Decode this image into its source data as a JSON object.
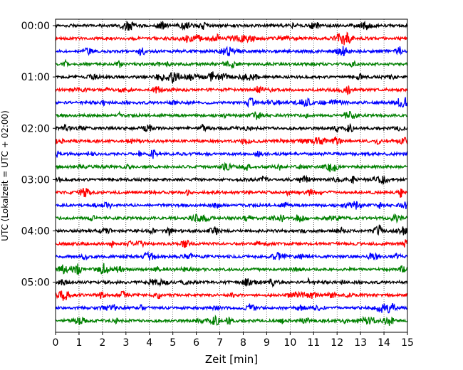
{
  "chart_data": {
    "type": "line",
    "title": "",
    "xlabel": "Zeit  [min]",
    "ylabel": "UTC (Lokalzeit = UTC + 02:00)",
    "xlim": [
      0,
      15
    ],
    "x_ticks": [
      0,
      1,
      2,
      3,
      4,
      5,
      6,
      7,
      8,
      9,
      10,
      11,
      12,
      13,
      14,
      15
    ],
    "x_tick_labels": [
      "0",
      "1",
      "2",
      "3",
      "4",
      "5",
      "6",
      "7",
      "8",
      "9",
      "10",
      "11",
      "12",
      "13",
      "14",
      "15"
    ],
    "ylim_traces": [
      -0.5,
      23.9
    ],
    "y_ticks": [
      0,
      4,
      8,
      12,
      16,
      20
    ],
    "y_tick_labels": [
      "00:00",
      "01:00",
      "02:00",
      "03:00",
      "04:00",
      "05:00"
    ],
    "trace_interval_minutes": 15,
    "grid": "vertical dotted",
    "color_cycle": [
      "#000000",
      "#ff0000",
      "#0000ff",
      "#008000"
    ],
    "series": [
      {
        "start": "00:00",
        "color": "#000000"
      },
      {
        "start": "00:15",
        "color": "#ff0000"
      },
      {
        "start": "00:30",
        "color": "#0000ff"
      },
      {
        "start": "00:45",
        "color": "#008000"
      },
      {
        "start": "01:00",
        "color": "#000000"
      },
      {
        "start": "01:15",
        "color": "#ff0000"
      },
      {
        "start": "01:30",
        "color": "#0000ff"
      },
      {
        "start": "01:45",
        "color": "#008000"
      },
      {
        "start": "02:00",
        "color": "#000000"
      },
      {
        "start": "02:15",
        "color": "#ff0000"
      },
      {
        "start": "02:30",
        "color": "#0000ff"
      },
      {
        "start": "02:45",
        "color": "#008000"
      },
      {
        "start": "03:00",
        "color": "#000000"
      },
      {
        "start": "03:15",
        "color": "#ff0000"
      },
      {
        "start": "03:30",
        "color": "#0000ff"
      },
      {
        "start": "03:45",
        "color": "#008000"
      },
      {
        "start": "04:00",
        "color": "#000000"
      },
      {
        "start": "04:15",
        "color": "#ff0000"
      },
      {
        "start": "04:30",
        "color": "#0000ff"
      },
      {
        "start": "04:45",
        "color": "#008000"
      },
      {
        "start": "05:00",
        "color": "#000000"
      },
      {
        "start": "05:15",
        "color": "#ff0000"
      },
      {
        "start": "05:30",
        "color": "#0000ff"
      },
      {
        "start": "05:45",
        "color": "#008000"
      }
    ]
  }
}
